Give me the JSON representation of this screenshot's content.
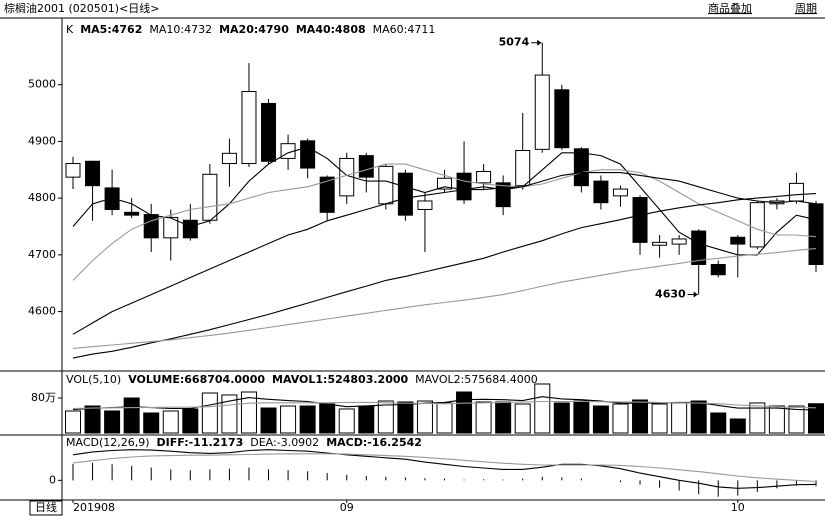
{
  "header": {
    "title": "棕榈油2001 (020501)<日线>",
    "buttons": [
      "商品叠加",
      "周期"
    ],
    "period_label": "日线"
  },
  "chart_data": [
    {
      "type": "candlestick",
      "legend_prefix": "K",
      "categories": [
        "201908",
        null,
        null,
        null,
        null,
        null,
        null,
        null,
        null,
        null,
        null,
        null,
        null,
        null,
        "09",
        null,
        null,
        null,
        null,
        null,
        null,
        null,
        null,
        null,
        null,
        null,
        null,
        null,
        null,
        null,
        null,
        null,
        null,
        null,
        "10",
        null,
        null,
        null,
        null
      ],
      "open": [
        4837,
        4865,
        4818,
        4775,
        4771,
        4730,
        4761,
        4761,
        4861,
        4861,
        4967,
        4870,
        4901,
        4837,
        4804,
        4875,
        4790,
        4844,
        4780,
        4816,
        4844,
        4827,
        4827,
        4822,
        4886,
        4991,
        4887,
        4830,
        4804,
        4801,
        4717,
        4719,
        4742,
        4683,
        4731,
        4714,
        4790,
        4795,
        4790
      ],
      "high": [
        4873,
        4866,
        4850,
        4800,
        4790,
        4780,
        4790,
        4860,
        4905,
        5038,
        4975,
        4912,
        4905,
        4840,
        4880,
        4880,
        4860,
        4850,
        4810,
        4850,
        4900,
        4860,
        4840,
        4950,
        5074,
        5000,
        4890,
        4840,
        4822,
        4805,
        4735,
        4735,
        4745,
        4690,
        4735,
        4795,
        4800,
        4845,
        4795
      ],
      "low": [
        4816,
        4760,
        4770,
        4765,
        4705,
        4690,
        4725,
        4755,
        4820,
        4855,
        4860,
        4850,
        4835,
        4760,
        4790,
        4810,
        4780,
        4760,
        4705,
        4810,
        4790,
        4815,
        4770,
        4815,
        4880,
        4885,
        4810,
        4780,
        4785,
        4700,
        4695,
        4700,
        4630,
        4660,
        4660,
        4710,
        4780,
        4790,
        4670
      ],
      "close": [
        4861,
        4822,
        4780,
        4770,
        4730,
        4766,
        4730,
        4842,
        4879,
        4988,
        4865,
        4896,
        4853,
        4775,
        4870,
        4837,
        4856,
        4770,
        4795,
        4835,
        4797,
        4847,
        4785,
        4884,
        5017,
        4889,
        4822,
        4792,
        4816,
        4722,
        4722,
        4728,
        4683,
        4665,
        4719,
        4792,
        4795,
        4826,
        4683
      ],
      "up_color": "#ffffff",
      "down_color": "#000000",
      "series": [
        {
          "name": "MA5:4762",
          "color": "#000000",
          "values": [
            4750,
            4790,
            4800,
            4790,
            4770,
            4765,
            4750,
            4760,
            4790,
            4830,
            4860,
            4880,
            4890,
            4870,
            4840,
            4830,
            4830,
            4820,
            4810,
            4820,
            4815,
            4820,
            4815,
            4820,
            4850,
            4880,
            4880,
            4875,
            4860,
            4820,
            4780,
            4740,
            4720,
            4710,
            4700,
            4700,
            4740,
            4770,
            4762
          ]
        },
        {
          "name": "MA10:4732",
          "color": "#999999",
          "values": [
            4655,
            4690,
            4720,
            4745,
            4760,
            4770,
            4780,
            4785,
            4790,
            4800,
            4810,
            4815,
            4820,
            4830,
            4840,
            4850,
            4860,
            4860,
            4850,
            4840,
            4830,
            4825,
            4822,
            4820,
            4825,
            4835,
            4845,
            4850,
            4850,
            4845,
            4830,
            4810,
            4790,
            4775,
            4760,
            4745,
            4735,
            4735,
            4732
          ]
        },
        {
          "name": "MA20:4790",
          "color": "#000000",
          "values": [
            4560,
            4580,
            4600,
            4615,
            4630,
            4645,
            4660,
            4675,
            4690,
            4705,
            4720,
            4735,
            4745,
            4760,
            4770,
            4780,
            4790,
            4800,
            4805,
            4810,
            4815,
            4815,
            4818,
            4820,
            4830,
            4840,
            4845,
            4845,
            4845,
            4840,
            4835,
            4830,
            4820,
            4810,
            4800,
            4795,
            4792,
            4795,
            4790
          ]
        },
        {
          "name": "MA40:4808",
          "color": "#000000",
          "values": [
            4518,
            4525,
            4530,
            4537,
            4545,
            4552,
            4560,
            4568,
            4577,
            4586,
            4595,
            4605,
            4615,
            4625,
            4635,
            4645,
            4655,
            4662,
            4670,
            4678,
            4686,
            4694,
            4705,
            4715,
            4725,
            4737,
            4748,
            4755,
            4762,
            4770,
            4777,
            4783,
            4788,
            4792,
            4797,
            4800,
            4803,
            4806,
            4808
          ]
        },
        {
          "name": "MA60:4711",
          "color": "#999999",
          "values": [
            4535,
            4538,
            4541,
            4544,
            4547,
            4550,
            4554,
            4558,
            4562,
            4567,
            4572,
            4577,
            4582,
            4587,
            4592,
            4597,
            4602,
            4607,
            4612,
            4616,
            4620,
            4625,
            4630,
            4637,
            4645,
            4652,
            4658,
            4664,
            4670,
            4675,
            4680,
            4685,
            4690,
            4694,
            4698,
            4701,
            4704,
            4708,
            4711
          ]
        }
      ],
      "annotations": [
        {
          "value": 5074,
          "index": 24
        },
        {
          "value": 4630,
          "index": 32
        }
      ],
      "ylim": [
        4497,
        5107
      ],
      "yticks": [
        4600,
        4700,
        4800,
        4900,
        5000
      ]
    },
    {
      "type": "bar",
      "title": "VOL(5,10)",
      "series": [
        {
          "name": "VOLUME:668704.0000",
          "values": [
            503000,
            617000,
            503000,
            800000,
            457000,
            503000,
            549000,
            914000,
            869000,
            937000,
            571000,
            617000,
            617000,
            663000,
            549000,
            617000,
            731000,
            709000,
            731000,
            686000,
            937000,
            709000,
            709000,
            663000,
            1120000,
            686000,
            731000,
            617000,
            663000,
            754000,
            663000,
            686000,
            731000,
            457000,
            320000,
            686000,
            617000,
            617000,
            668704
          ]
        },
        {
          "name": "MAVOL1:524803.2000",
          "color": "#000000",
          "values": [
            540000,
            560000,
            580000,
            600000,
            580000,
            560000,
            560000,
            640000,
            730000,
            810000,
            770000,
            740000,
            720000,
            660000,
            600000,
            620000,
            640000,
            650000,
            680000,
            700000,
            760000,
            770000,
            760000,
            740000,
            830000,
            780000,
            760000,
            730000,
            680000,
            680000,
            690000,
            700000,
            700000,
            630000,
            570000,
            570000,
            570000,
            540000,
            524803.2
          ]
        },
        {
          "name": "MAVOL2:575684.4000",
          "color": "#999999",
          "values": [
            560000,
            570000,
            575000,
            580000,
            585000,
            590000,
            590000,
            600000,
            640000,
            680000,
            690000,
            690000,
            690000,
            690000,
            700000,
            700000,
            690000,
            680000,
            675000,
            670000,
            680000,
            690000,
            700000,
            705000,
            720000,
            720000,
            720000,
            715000,
            710000,
            705000,
            700000,
            690000,
            685000,
            670000,
            640000,
            620000,
            600000,
            585000,
            575684.4
          ]
        }
      ],
      "ylim": [
        0,
        1394000
      ],
      "yticks": [
        {
          "value": 800000,
          "label": "80万"
        }
      ]
    },
    {
      "type": "macd",
      "title": "MACD(12,26,9)",
      "series": [
        {
          "name": "DIFF:-11.2173",
          "color": "#000000",
          "values": [
            70,
            78,
            82,
            84,
            83,
            80,
            76,
            74,
            76,
            82,
            84,
            82,
            80,
            75,
            70,
            66,
            62,
            58,
            50,
            44,
            38,
            34,
            30,
            30,
            36,
            44,
            44,
            40,
            32,
            20,
            10,
            0,
            -8,
            -18,
            -22,
            -20,
            -16,
            -12,
            -11.2173
          ]
        },
        {
          "name": "DEA:-3.0902",
          "color": "#999999",
          "values": [
            48,
            54,
            60,
            64,
            67,
            68,
            69,
            69,
            70,
            71,
            72,
            73,
            73,
            73,
            72,
            70,
            68,
            66,
            63,
            59,
            55,
            51,
            47,
            44,
            42,
            42,
            42,
            42,
            41,
            38,
            34,
            29,
            24,
            18,
            12,
            7,
            3,
            0,
            -3.0902
          ]
        },
        {
          "name": "MACD:-16.2542",
          "color": "#000000",
          "values": [
            45,
            48,
            44,
            40,
            35,
            30,
            28,
            30,
            32,
            35,
            30,
            28,
            25,
            20,
            15,
            12,
            10,
            8,
            6,
            5,
            2,
            3,
            2,
            5,
            10,
            8,
            5,
            0,
            -5,
            -12,
            -20,
            -28,
            -38,
            -45,
            -42,
            -32,
            -22,
            -15,
            -16.2542
          ]
        }
      ],
      "ylim": [
        -54,
        119
      ],
      "yticks": [
        0
      ]
    }
  ]
}
